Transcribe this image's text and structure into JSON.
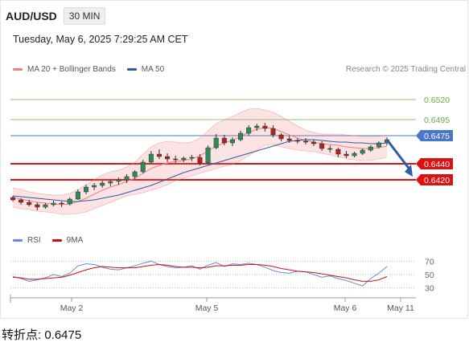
{
  "header": {
    "symbol": "AUD/USD",
    "timeframe": "30 MIN",
    "datetime": "Tuesday, May 6, 2025 7:29:25 AM CET",
    "copyright": "Research © 2025 Trading Central"
  },
  "colors": {
    "bollinger": "#f08080",
    "ma50": "#2a5ca8",
    "resistance": "#8dc66e",
    "support": "#dd1111",
    "pivot": "#4a78c8",
    "rsi": "#6688dd",
    "rsi_ma": "#cc1111",
    "candle_up": "#2e8b57",
    "candle_down": "#b22222",
    "arrow": "#2a5ca8"
  },
  "chart_data": [
    {
      "type": "candlestick",
      "legend": [
        "MA 20 + Bollinger Bands",
        "MA 50"
      ],
      "x_ticks": [
        "May 2",
        "May 5",
        "May 6",
        "May 11"
      ],
      "ylim": [
        0.6358,
        0.6545
      ],
      "levels": [
        {
          "value": 0.652,
          "label": "0.6520",
          "kind": "resistance"
        },
        {
          "value": 0.6495,
          "label": "0.6495",
          "kind": "resistance"
        },
        {
          "value": 0.6475,
          "label": "0.6475",
          "kind": "pivot"
        },
        {
          "value": 0.644,
          "label": "0.6440",
          "kind": "support"
        },
        {
          "value": 0.642,
          "label": "0.6420",
          "kind": "support"
        }
      ],
      "last_price": 0.647,
      "ma50": [
        0.64,
        0.6399,
        0.6398,
        0.6397,
        0.6396,
        0.6395,
        0.6394,
        0.6393,
        0.6393,
        0.6394,
        0.6395,
        0.6397,
        0.6399,
        0.6401,
        0.6404,
        0.6407,
        0.641,
        0.6413,
        0.6417,
        0.6421,
        0.6425,
        0.6429,
        0.6432,
        0.6435,
        0.6438,
        0.6441,
        0.6444,
        0.6447,
        0.645,
        0.6453,
        0.6456,
        0.6459,
        0.6462,
        0.6465,
        0.6468,
        0.6469,
        0.647,
        0.647,
        0.6469,
        0.6468,
        0.6467,
        0.6467,
        0.6466,
        0.6466,
        0.6465,
        0.6465,
        0.6466
      ],
      "bollinger_mid": [
        0.6398,
        0.6396,
        0.6394,
        0.6392,
        0.6391,
        0.639,
        0.6389,
        0.639,
        0.6393,
        0.6397,
        0.6402,
        0.6407,
        0.6411,
        0.6414,
        0.6418,
        0.6422,
        0.6428,
        0.6434,
        0.6438,
        0.6441,
        0.6443,
        0.6444,
        0.6446,
        0.645,
        0.6456,
        0.6462,
        0.6466,
        0.6469,
        0.6474,
        0.6479,
        0.6483,
        0.6485,
        0.6484,
        0.648,
        0.6476,
        0.6472,
        0.6469,
        0.6467,
        0.6465,
        0.6464,
        0.6463,
        0.6461,
        0.646,
        0.6459,
        0.6459,
        0.646,
        0.6462
      ],
      "bollinger_width": [
        0.0012,
        0.0012,
        0.0011,
        0.0011,
        0.0011,
        0.0011,
        0.0012,
        0.0013,
        0.0015,
        0.0017,
        0.0018,
        0.0019,
        0.0019,
        0.0018,
        0.0018,
        0.002,
        0.0024,
        0.0027,
        0.0028,
        0.0027,
        0.0024,
        0.0022,
        0.0021,
        0.0022,
        0.0025,
        0.0028,
        0.0029,
        0.003,
        0.003,
        0.0029,
        0.0026,
        0.0022,
        0.002,
        0.0019,
        0.0017,
        0.0015,
        0.0013,
        0.0012,
        0.0012,
        0.0013,
        0.0014,
        0.0015,
        0.0015,
        0.0015,
        0.0015,
        0.0014,
        0.0014
      ],
      "candles": [
        [
          0.6398,
          0.64,
          0.6393,
          0.6395
        ],
        [
          0.6395,
          0.6397,
          0.6389,
          0.6392
        ],
        [
          0.6392,
          0.6395,
          0.6387,
          0.6389
        ],
        [
          0.6389,
          0.6392,
          0.6382,
          0.6386
        ],
        [
          0.6386,
          0.6391,
          0.6384,
          0.6389
        ],
        [
          0.6389,
          0.6394,
          0.6387,
          0.6391
        ],
        [
          0.6391,
          0.6393,
          0.6386,
          0.639
        ],
        [
          0.639,
          0.6398,
          0.6388,
          0.6396
        ],
        [
          0.6396,
          0.6408,
          0.6395,
          0.6405
        ],
        [
          0.6405,
          0.6414,
          0.6402,
          0.6411
        ],
        [
          0.6411,
          0.6416,
          0.6407,
          0.6413
        ],
        [
          0.6413,
          0.6419,
          0.641,
          0.6416
        ],
        [
          0.6416,
          0.642,
          0.6412,
          0.6418
        ],
        [
          0.6418,
          0.6423,
          0.6414,
          0.642
        ],
        [
          0.642,
          0.6427,
          0.6416,
          0.6424
        ],
        [
          0.6424,
          0.6432,
          0.6421,
          0.643
        ],
        [
          0.643,
          0.6445,
          0.6428,
          0.6442
        ],
        [
          0.6442,
          0.6456,
          0.644,
          0.6452
        ],
        [
          0.6452,
          0.6458,
          0.6446,
          0.6449
        ],
        [
          0.6449,
          0.6453,
          0.6442,
          0.6446
        ],
        [
          0.6446,
          0.645,
          0.6441,
          0.6445
        ],
        [
          0.6445,
          0.6449,
          0.6442,
          0.6447
        ],
        [
          0.6447,
          0.6451,
          0.6443,
          0.6448
        ],
        [
          0.6448,
          0.6452,
          0.6438,
          0.6441
        ],
        [
          0.6441,
          0.6463,
          0.644,
          0.646
        ],
        [
          0.646,
          0.6477,
          0.6458,
          0.6472
        ],
        [
          0.6472,
          0.6476,
          0.6463,
          0.6466
        ],
        [
          0.6466,
          0.6473,
          0.6462,
          0.647
        ],
        [
          0.647,
          0.6481,
          0.6468,
          0.6478
        ],
        [
          0.6478,
          0.6488,
          0.6475,
          0.6485
        ],
        [
          0.6485,
          0.649,
          0.6481,
          0.6487
        ],
        [
          0.6487,
          0.6491,
          0.648,
          0.6484
        ],
        [
          0.6484,
          0.6488,
          0.6473,
          0.6476
        ],
        [
          0.6476,
          0.6478,
          0.6468,
          0.6471
        ],
        [
          0.6471,
          0.6475,
          0.6466,
          0.6469
        ],
        [
          0.6469,
          0.6472,
          0.6465,
          0.6468
        ],
        [
          0.6468,
          0.6472,
          0.6464,
          0.6467
        ],
        [
          0.6467,
          0.647,
          0.6462,
          0.6465
        ],
        [
          0.6465,
          0.6468,
          0.6456,
          0.6459
        ],
        [
          0.6459,
          0.6463,
          0.6454,
          0.6458
        ],
        [
          0.6458,
          0.646,
          0.6448,
          0.6452
        ],
        [
          0.6452,
          0.6456,
          0.6447,
          0.645
        ],
        [
          0.645,
          0.6455,
          0.6448,
          0.6453
        ],
        [
          0.6453,
          0.6459,
          0.6451,
          0.6457
        ],
        [
          0.6457,
          0.6463,
          0.6455,
          0.6461
        ],
        [
          0.6461,
          0.6468,
          0.6459,
          0.6466
        ],
        [
          0.6466,
          0.6473,
          0.6463,
          0.647
        ]
      ],
      "forecast_from": 0.647,
      "forecast_to": 0.6424
    },
    {
      "type": "line",
      "legend": [
        "RSI",
        "9MA"
      ],
      "y_ticks": [
        70,
        50,
        30
      ],
      "ylim": [
        20,
        80
      ],
      "rsi": [
        47,
        44,
        40,
        42,
        45,
        50,
        47,
        52,
        63,
        66,
        65,
        61,
        58,
        57,
        60,
        63,
        67,
        70,
        65,
        62,
        60,
        61,
        63,
        58,
        64,
        68,
        62,
        66,
        65,
        67,
        65,
        61,
        56,
        53,
        52,
        55,
        54,
        50,
        46,
        48,
        44,
        41,
        37,
        33,
        44,
        52,
        62
      ],
      "rsi_ma": [
        46,
        45,
        43,
        43,
        44,
        45,
        46,
        49,
        53,
        57,
        60,
        62,
        61,
        60,
        60,
        60,
        62,
        64,
        65,
        64,
        62,
        61,
        61,
        60,
        61,
        63,
        63,
        64,
        64,
        65,
        65,
        64,
        62,
        59,
        57,
        55,
        54,
        53,
        51,
        49,
        47,
        45,
        42,
        40,
        40,
        42,
        47
      ]
    }
  ],
  "footer": {
    "pivot_label": "转折点: 0.6475"
  }
}
